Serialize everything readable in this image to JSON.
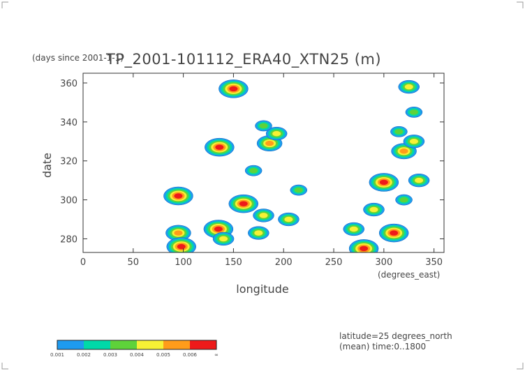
{
  "chart_data": {
    "type": "heatmap",
    "title": "TP_2001-101112_ERA40_XTN25 (m)",
    "y_unit_note": "(days since 2001-1-1)",
    "xlabel": "longitude",
    "x_unit": "(degrees_east)",
    "ylabel": "date",
    "xlim": [
      0,
      360
    ],
    "ylim": [
      273,
      365
    ],
    "x_ticks": [
      0,
      50,
      100,
      150,
      200,
      250,
      300,
      350
    ],
    "y_ticks": [
      280,
      300,
      320,
      340,
      360
    ],
    "grid": false,
    "annotations": [
      "latitude=25 degrees_north",
      "(mean) time:0..1800"
    ],
    "colorbar": {
      "bounds": [
        "0.001",
        "0.002",
        "0.003",
        "0.004",
        "0.005",
        "0.006",
        "∞"
      ],
      "colors": [
        "#1e9bf0",
        "#00d9a8",
        "#5ed23a",
        "#f7f135",
        "#ff9c1a",
        "#ee1a1a"
      ]
    },
    "cells": [
      {
        "lon": 150,
        "day": 357,
        "level": 5
      },
      {
        "lon": 136,
        "day": 327,
        "level": 5
      },
      {
        "lon": 186,
        "day": 329,
        "level": 4
      },
      {
        "lon": 193,
        "day": 334,
        "level": 3
      },
      {
        "lon": 180,
        "day": 338,
        "level": 2
      },
      {
        "lon": 95,
        "day": 302,
        "level": 5
      },
      {
        "lon": 160,
        "day": 298,
        "level": 5
      },
      {
        "lon": 135,
        "day": 285,
        "level": 5
      },
      {
        "lon": 95,
        "day": 283,
        "level": 4
      },
      {
        "lon": 98,
        "day": 276,
        "level": 5
      },
      {
        "lon": 140,
        "day": 280,
        "level": 3
      },
      {
        "lon": 180,
        "day": 292,
        "level": 3
      },
      {
        "lon": 205,
        "day": 290,
        "level": 3
      },
      {
        "lon": 175,
        "day": 283,
        "level": 3
      },
      {
        "lon": 215,
        "day": 305,
        "level": 2
      },
      {
        "lon": 170,
        "day": 315,
        "level": 2
      },
      {
        "lon": 300,
        "day": 309,
        "level": 5
      },
      {
        "lon": 320,
        "day": 325,
        "level": 4
      },
      {
        "lon": 330,
        "day": 330,
        "level": 3
      },
      {
        "lon": 315,
        "day": 335,
        "level": 2
      },
      {
        "lon": 335,
        "day": 310,
        "level": 3
      },
      {
        "lon": 310,
        "day": 283,
        "level": 5
      },
      {
        "lon": 280,
        "day": 275,
        "level": 5
      },
      {
        "lon": 290,
        "day": 295,
        "level": 3
      },
      {
        "lon": 320,
        "day": 300,
        "level": 2
      },
      {
        "lon": 270,
        "day": 285,
        "level": 3
      },
      {
        "lon": 330,
        "day": 345,
        "level": 2
      },
      {
        "lon": 325,
        "day": 358,
        "level": 3
      }
    ]
  }
}
